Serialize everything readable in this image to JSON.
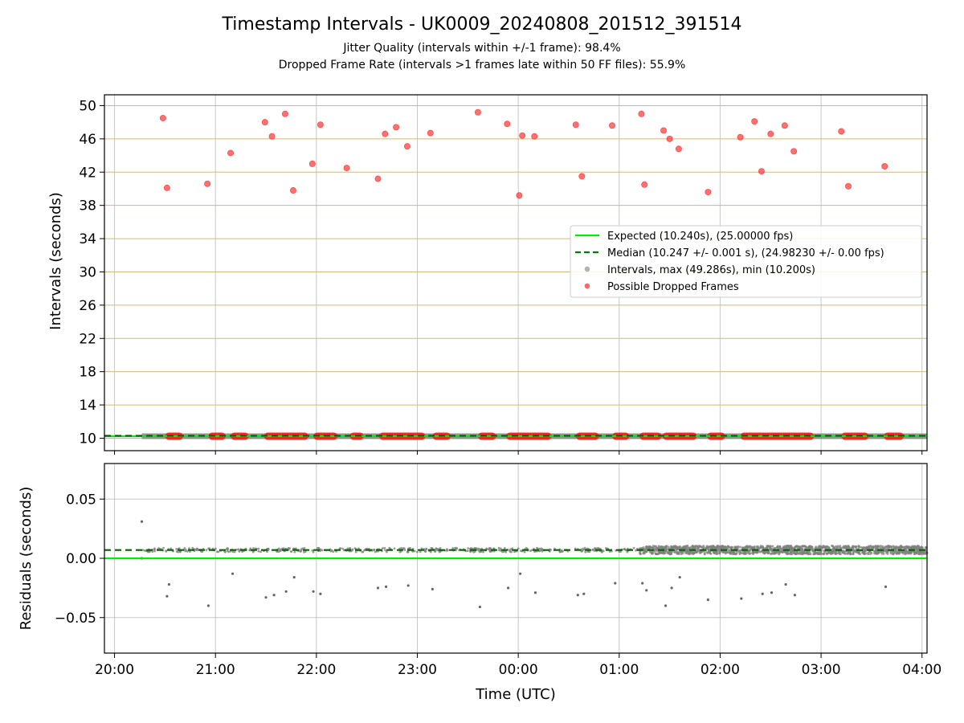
{
  "chart_data": [
    {
      "type": "scatter",
      "title": "Timestamp Intervals - UK0009_20240808_201512_391514",
      "subtitle_lines": [
        "Jitter Quality (intervals within +/-1 frame): 98.4%",
        "Dropped Frame Rate (intervals >1 frames late within 50 FF files): 55.9%"
      ],
      "xlabel": "",
      "ylabel": "Intervals (seconds)",
      "xlim_hours": [
        19.9,
        28.05
      ],
      "ylim": [
        8.5,
        51.3
      ],
      "y_ticks": [
        10,
        14,
        18,
        22,
        26,
        30,
        34,
        38,
        42,
        46,
        50
      ],
      "y_grid_color": "#d4b878",
      "legend_position": "center-right",
      "legend": [
        {
          "label": "Expected (10.240s), (25.00000 fps)",
          "kind": "line",
          "color": "#00ee00"
        },
        {
          "label": "Median (10.247 +/- 0.001 s), (24.98230 +/- 0.00 fps)",
          "kind": "dashed",
          "color": "#007f00"
        },
        {
          "label": "Intervals, max (49.286s), min (10.200s)",
          "kind": "dot",
          "color": "#999999"
        },
        {
          "label": "Possible Dropped Frames",
          "kind": "dot",
          "color": "#ff3333"
        }
      ],
      "expected_interval": 10.24,
      "median_interval": 10.247,
      "baseline_span_hours": [
        20.27,
        28.05
      ],
      "dropped_frame_bands_hours": [
        [
          20.5,
          20.68
        ],
        [
          20.93,
          21.1
        ],
        [
          21.15,
          21.33
        ],
        [
          21.48,
          21.92
        ],
        [
          21.97,
          22.21
        ],
        [
          22.33,
          22.47
        ],
        [
          22.62,
          23.08
        ],
        [
          23.15,
          23.33
        ],
        [
          23.6,
          23.78
        ],
        [
          23.88,
          24.33
        ],
        [
          24.57,
          24.8
        ],
        [
          24.93,
          25.1
        ],
        [
          25.2,
          25.42
        ],
        [
          25.43,
          25.77
        ],
        [
          25.87,
          26.05
        ],
        [
          26.2,
          26.93
        ],
        [
          27.2,
          27.47
        ],
        [
          27.62,
          27.82
        ]
      ],
      "dropped_points": [
        [
          20.48,
          48.5
        ],
        [
          20.52,
          40.1
        ],
        [
          20.92,
          40.6
        ],
        [
          21.15,
          44.3
        ],
        [
          21.49,
          48.0
        ],
        [
          21.56,
          46.3
        ],
        [
          21.69,
          49.0
        ],
        [
          21.77,
          39.8
        ],
        [
          21.96,
          43.0
        ],
        [
          22.04,
          47.7
        ],
        [
          22.3,
          42.5
        ],
        [
          22.61,
          41.2
        ],
        [
          22.68,
          46.6
        ],
        [
          22.79,
          47.4
        ],
        [
          22.9,
          45.1
        ],
        [
          23.13,
          46.7
        ],
        [
          23.6,
          49.2
        ],
        [
          23.89,
          47.8
        ],
        [
          24.01,
          39.2
        ],
        [
          24.04,
          46.4
        ],
        [
          24.16,
          46.3
        ],
        [
          24.57,
          47.7
        ],
        [
          24.63,
          41.5
        ],
        [
          24.93,
          47.6
        ],
        [
          25.22,
          49.0
        ],
        [
          25.25,
          40.5
        ],
        [
          25.44,
          47.0
        ],
        [
          25.5,
          46.0
        ],
        [
          25.59,
          44.8
        ],
        [
          25.88,
          39.6
        ],
        [
          26.2,
          46.2
        ],
        [
          26.34,
          48.1
        ],
        [
          26.41,
          42.1
        ],
        [
          26.5,
          46.6
        ],
        [
          26.64,
          47.6
        ],
        [
          26.73,
          44.5
        ],
        [
          27.2,
          46.9
        ],
        [
          27.27,
          40.3
        ],
        [
          27.63,
          42.7
        ]
      ]
    },
    {
      "type": "scatter",
      "title": "",
      "xlabel": "Time (UTC)",
      "ylabel": "Residuals (seconds)",
      "xlim_hours": [
        19.9,
        28.05
      ],
      "ylim": [
        -0.08,
        0.08
      ],
      "y_ticks": [
        0.05,
        0.0,
        -0.05
      ],
      "y_tick_labels": [
        "0.05",
        "0.00",
        "−0.05"
      ],
      "x_ticks_hours": [
        20,
        21,
        22,
        23,
        24,
        25,
        26,
        27,
        28
      ],
      "x_tick_labels": [
        "20:00",
        "21:00",
        "22:00",
        "23:00",
        "00:00",
        "01:00",
        "02:00",
        "03:00",
        "04:00"
      ],
      "expected_residual": 0.0,
      "median_residual": 0.007,
      "sparse_band_hours": [
        20.27,
        25.2
      ],
      "dense_band_hours": [
        25.2,
        28.05
      ],
      "outlier_points": [
        [
          20.27,
          0.031
        ],
        [
          20.27,
          0.0
        ],
        [
          20.52,
          -0.032
        ],
        [
          20.54,
          -0.022
        ],
        [
          20.93,
          -0.04
        ],
        [
          21.17,
          -0.013
        ],
        [
          21.5,
          -0.033
        ],
        [
          21.58,
          -0.031
        ],
        [
          21.7,
          -0.028
        ],
        [
          21.78,
          -0.016
        ],
        [
          21.97,
          -0.028
        ],
        [
          22.04,
          -0.03
        ],
        [
          22.61,
          -0.025
        ],
        [
          22.69,
          -0.024
        ],
        [
          22.91,
          -0.023
        ],
        [
          23.15,
          -0.026
        ],
        [
          23.62,
          -0.041
        ],
        [
          23.9,
          -0.025
        ],
        [
          24.02,
          -0.013
        ],
        [
          24.17,
          -0.029
        ],
        [
          24.59,
          -0.031
        ],
        [
          24.65,
          -0.03
        ],
        [
          24.96,
          -0.021
        ],
        [
          25.23,
          -0.021
        ],
        [
          25.27,
          -0.027
        ],
        [
          25.46,
          -0.04
        ],
        [
          25.52,
          -0.025
        ],
        [
          25.6,
          -0.016
        ],
        [
          25.88,
          -0.035
        ],
        [
          26.21,
          -0.034
        ],
        [
          26.42,
          -0.03
        ],
        [
          26.51,
          -0.029
        ],
        [
          26.65,
          -0.022
        ],
        [
          26.74,
          -0.031
        ],
        [
          27.64,
          -0.024
        ]
      ]
    }
  ]
}
